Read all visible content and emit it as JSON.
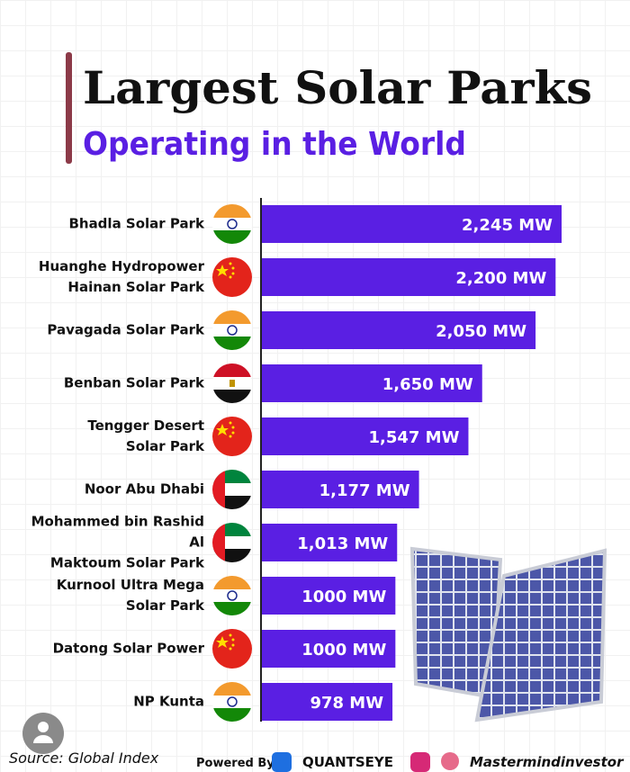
{
  "chart_data": {
    "type": "bar",
    "orientation": "horizontal",
    "title": "Largest Solar Parks",
    "subtitle": "Operating in the World",
    "categories": [
      "Bhadla Solar Park",
      "Huanghe Hydropower\nHainan Solar Park",
      "Pavagada Solar Park",
      "Benban Solar Park",
      "Tengger Desert\nSolar Park",
      "Noor Abu Dhabi",
      "Mohammed bin Rashid Al\nMaktoum Solar Park",
      "Kurnool Ultra Mega\nSolar Park",
      "Datong Solar Power",
      "NP Kunta"
    ],
    "values": [
      2245,
      2200,
      2050,
      1650,
      1547,
      1177,
      1013,
      1000,
      1000,
      978
    ],
    "value_labels": [
      "2,245 MW",
      "2,200 MW",
      "2,050 MW",
      "1,650 MW",
      "1,547 MW",
      "1,177 MW",
      "1,013 MW",
      "1000 MW",
      "1000 MW",
      "978 MW"
    ],
    "color": "#5a1fe3",
    "source": "Source: Global Index",
    "powered_by": "Powered By",
    "brand": "QUANTSEYE",
    "handle": "Mastermindinvestor"
  }
}
